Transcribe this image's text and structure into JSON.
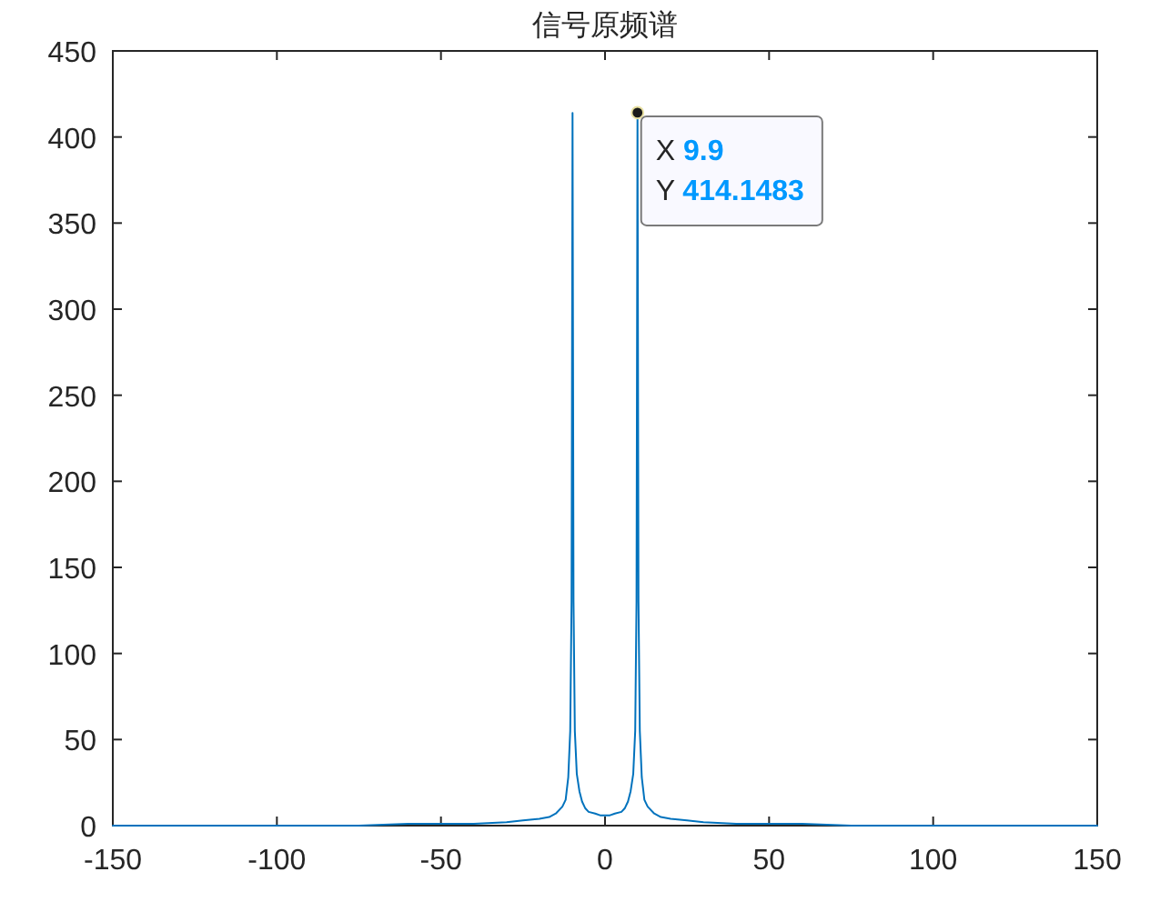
{
  "chart_data": {
    "type": "line",
    "title": "信号原频谱",
    "x": [
      -150,
      -125,
      -100,
      -75,
      -60,
      -50,
      -40,
      -30,
      -25,
      -20,
      -17,
      -15,
      -13,
      -12,
      -11.2,
      -10.6,
      -10.2,
      -9.9,
      -9.6,
      -9.2,
      -8.6,
      -7.8,
      -7,
      -6,
      -5,
      -3,
      -1.5,
      0,
      1.5,
      3,
      5,
      6,
      7,
      7.8,
      8.6,
      9.2,
      9.6,
      9.9,
      10.2,
      10.6,
      11.2,
      12,
      13,
      15,
      17,
      20,
      25,
      30,
      40,
      50,
      60,
      75,
      100,
      125,
      150
    ],
    "values": [
      0,
      0,
      0,
      0,
      1,
      1,
      1,
      2,
      3,
      4,
      5,
      7,
      11,
      15,
      28,
      55,
      130,
      414,
      130,
      55,
      30,
      20,
      14,
      10,
      8,
      7,
      6,
      6,
      6,
      7,
      8,
      10,
      14,
      20,
      30,
      55,
      130,
      414.1483,
      130,
      55,
      28,
      15,
      11,
      7,
      5,
      4,
      3,
      2,
      1,
      1,
      1,
      0,
      0,
      0,
      0
    ],
    "color": "#0072bd",
    "xlim": [
      -150,
      150
    ],
    "ylim": [
      0,
      450
    ],
    "xticks": [
      -150,
      -100,
      -50,
      0,
      50,
      100,
      150
    ],
    "yticks": [
      0,
      50,
      100,
      150,
      200,
      250,
      300,
      350,
      400,
      450
    ],
    "annotations": [
      {
        "text": "X 9.9\nY 414.1483",
        "x": 9.9,
        "y": 414.1483
      }
    ]
  }
}
